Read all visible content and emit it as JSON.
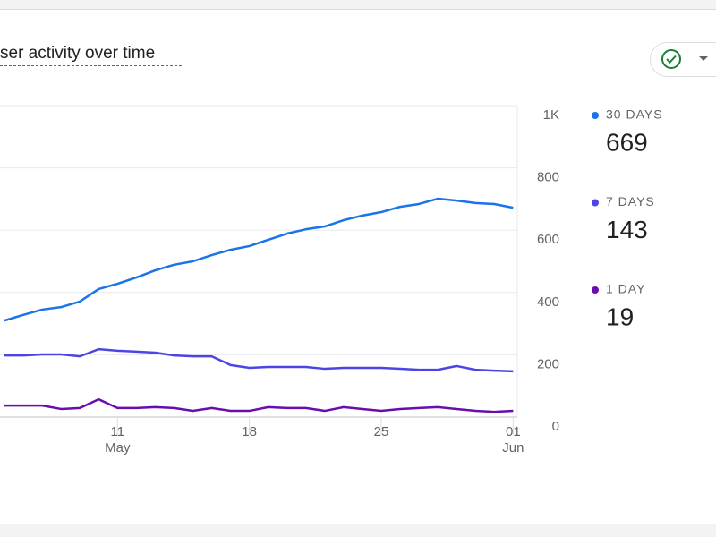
{
  "chart_data": {
    "type": "line",
    "title": "ser activity over time",
    "categories": [
      "May 5",
      "May 6",
      "May 7",
      "May 8",
      "May 9",
      "May 10",
      "May 11",
      "May 12",
      "May 13",
      "May 14",
      "May 15",
      "May 16",
      "May 17",
      "May 18",
      "May 19",
      "May 20",
      "May 21",
      "May 22",
      "May 23",
      "May 24",
      "May 25",
      "May 26",
      "May 27",
      "May 28",
      "May 29",
      "May 30",
      "May 31",
      "Jun 1"
    ],
    "series": [
      {
        "name": "30 DAYS",
        "color": "#1a73e8",
        "total": 669,
        "values": [
          310,
          328,
          345,
          353,
          371,
          411,
          428,
          448,
          471,
          489,
          500,
          520,
          537,
          549,
          569,
          589,
          603,
          612,
          632,
          647,
          658,
          675,
          684,
          701,
          695,
          687,
          684,
          672
        ]
      },
      {
        "name": "7 DAYS",
        "color": "#4b46e2",
        "total": 143,
        "values": [
          198,
          198,
          201,
          201,
          195,
          218,
          213,
          210,
          207,
          198,
          195,
          195,
          167,
          158,
          161,
          161,
          161,
          155,
          158,
          158,
          158,
          155,
          152,
          152,
          164,
          152,
          149,
          147
        ]
      },
      {
        "name": "1 DAY",
        "color": "#6a0dad",
        "total": 19,
        "values": [
          37,
          37,
          37,
          26,
          29,
          57,
          29,
          29,
          32,
          29,
          20,
          29,
          20,
          20,
          32,
          29,
          29,
          20,
          32,
          26,
          20,
          26,
          29,
          32,
          26,
          20,
          17,
          20
        ]
      }
    ],
    "xticks": [
      {
        "value": "May 11",
        "label": "11",
        "month": "May"
      },
      {
        "value": "May 18",
        "label": "18"
      },
      {
        "value": "May 25",
        "label": "25"
      },
      {
        "value": "Jun 1",
        "label": "01",
        "month": "Jun"
      }
    ],
    "ylim": [
      0,
      1000
    ],
    "yticks": [
      0,
      200,
      400,
      600,
      800,
      {
        "value": 1000,
        "label": "1K"
      }
    ],
    "grid": true
  }
}
